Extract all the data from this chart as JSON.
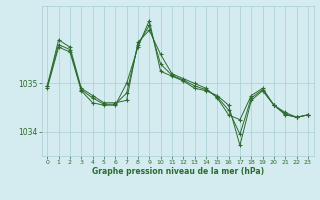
{
  "bg_color": "#d4ecf0",
  "grid_color": "#a8cdd4",
  "line_color": "#2d6a2d",
  "text_color": "#2d6a2d",
  "xlabel": "Graphe pression niveau de la mer (hPa)",
  "ylim": [
    1033.5,
    1036.6
  ],
  "xlim": [
    -0.5,
    23.5
  ],
  "yticks": [
    1034,
    1035
  ],
  "xticks": [
    0,
    1,
    2,
    3,
    4,
    5,
    6,
    7,
    8,
    9,
    10,
    11,
    12,
    13,
    14,
    15,
    16,
    17,
    18,
    19,
    20,
    21,
    22,
    23
  ],
  "series1": [
    1034.9,
    1035.75,
    1035.65,
    1034.85,
    1034.6,
    1034.55,
    1034.55,
    1035.0,
    1035.75,
    1036.3,
    1035.25,
    1035.15,
    1035.05,
    1034.9,
    1034.85,
    1034.75,
    1034.55,
    1033.72,
    1034.65,
    1034.85,
    1034.55,
    1034.35,
    1034.3,
    1034.35
  ],
  "series2": [
    1034.95,
    1035.9,
    1035.75,
    1034.9,
    1034.75,
    1034.6,
    1034.6,
    1034.65,
    1035.85,
    1036.1,
    1035.6,
    1035.2,
    1035.1,
    1035.0,
    1034.9,
    1034.7,
    1034.35,
    1034.25,
    1034.75,
    1034.9,
    1034.55,
    1034.4,
    1034.3,
    1034.35
  ],
  "series3": [
    1034.95,
    1035.8,
    1035.7,
    1034.87,
    1034.7,
    1034.57,
    1034.57,
    1034.8,
    1035.8,
    1036.2,
    1035.4,
    1035.17,
    1035.07,
    1034.95,
    1034.87,
    1034.72,
    1034.45,
    1033.95,
    1034.7,
    1034.87,
    1034.55,
    1034.37,
    1034.3,
    1034.35
  ],
  "figwidth": 3.2,
  "figheight": 2.0,
  "dpi": 100
}
